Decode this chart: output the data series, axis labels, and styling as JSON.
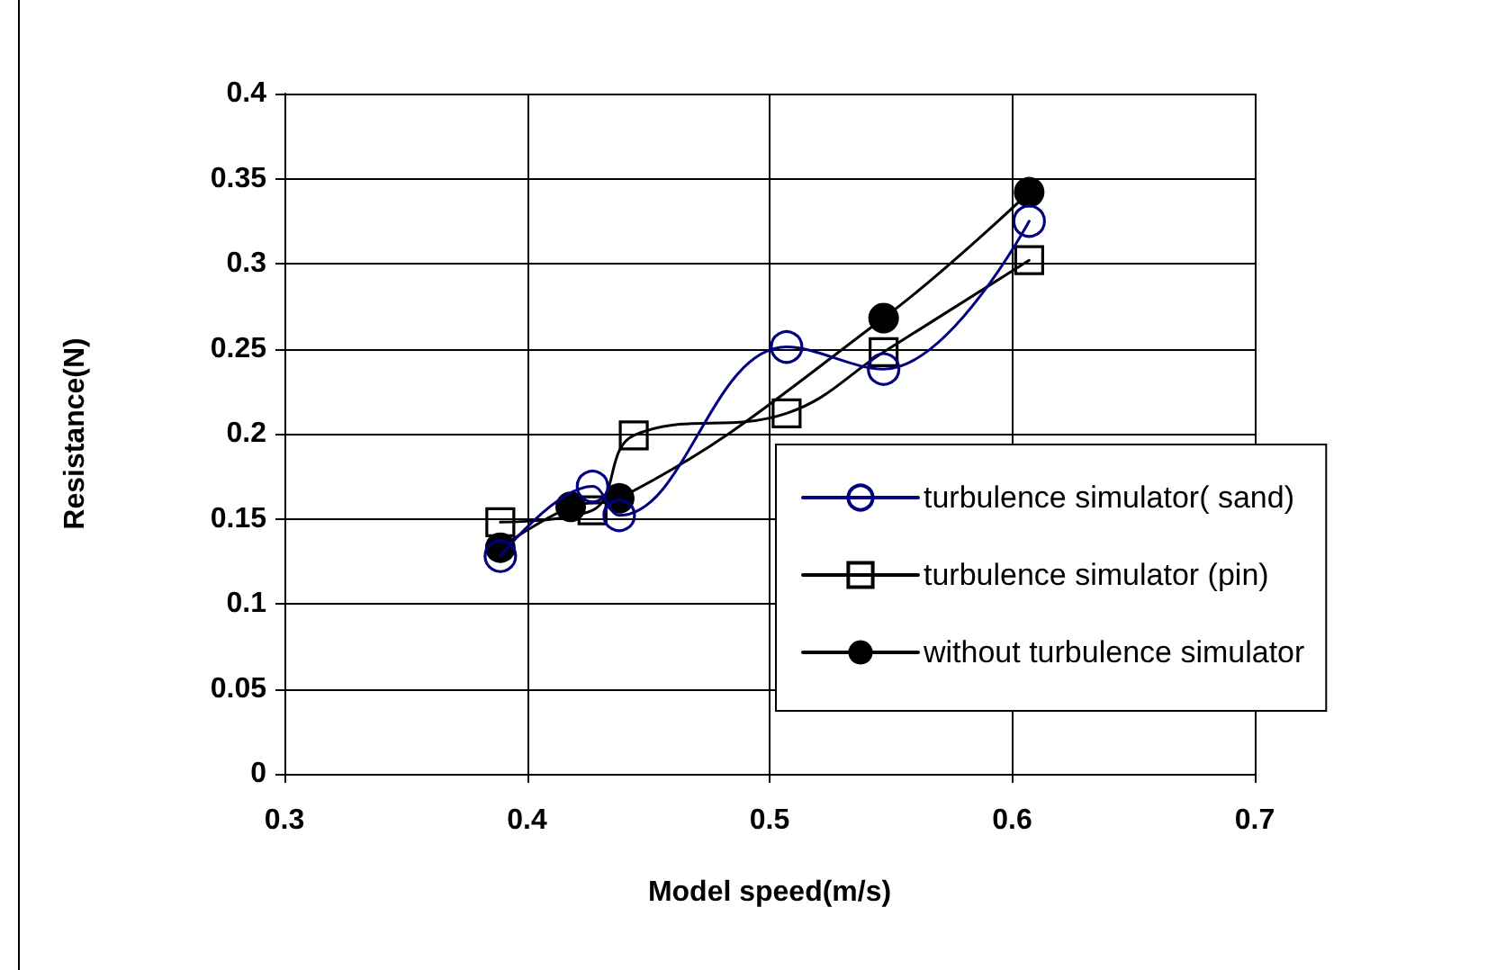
{
  "chart_data": {
    "type": "line",
    "xlabel": "Model speed(m/s)",
    "ylabel": "Resistance(N)",
    "xlim": [
      0.3,
      0.7
    ],
    "xticks": [
      0.3,
      0.4,
      0.5,
      0.6,
      0.7
    ],
    "ylim": [
      0,
      0.4
    ],
    "yticks": [
      0,
      0.05,
      0.1,
      0.15,
      0.2,
      0.25,
      0.3,
      0.35,
      0.4
    ],
    "grid": true,
    "legend": "bottom right",
    "line_style": "solid",
    "series": [
      {
        "name": "turbulence simulator( sand)",
        "color": "#000080",
        "marker": "circle",
        "x": [
          0.389,
          0.427,
          0.438,
          0.507,
          0.547,
          0.607
        ],
        "values": [
          0.128,
          0.169,
          0.152,
          0.251,
          0.238,
          0.325
        ]
      },
      {
        "name": "turbulence simulator (pin)",
        "color": "#000000",
        "marker": "square",
        "x": [
          0.389,
          0.427,
          0.444,
          0.507,
          0.547,
          0.607
        ],
        "values": [
          0.148,
          0.155,
          0.199,
          0.212,
          0.248,
          0.302
        ]
      },
      {
        "name": "without turbulence simulator",
        "color": "#000000",
        "marker": "circle",
        "x": [
          0.389,
          0.418,
          0.438,
          0.547,
          0.607
        ],
        "values": [
          0.133,
          0.157,
          0.162,
          0.268,
          0.342
        ]
      }
    ]
  }
}
